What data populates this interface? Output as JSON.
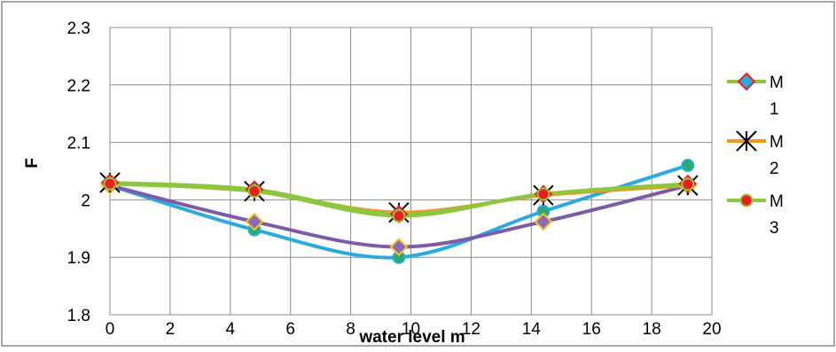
{
  "chart_data": {
    "type": "line",
    "title": "",
    "xlabel": "water level m",
    "ylabel": "F",
    "xlim": [
      0,
      20
    ],
    "ylim": [
      1.8,
      2.3
    ],
    "x_ticks": [
      0,
      2,
      4,
      6,
      8,
      10,
      12,
      14,
      16,
      18,
      20
    ],
    "y_ticks": [
      1.8,
      1.9,
      2.0,
      2.1,
      2.2,
      2.3
    ],
    "x_tick_labels": [
      "0",
      "2",
      "4",
      "6",
      "8",
      "10",
      "12",
      "14",
      "16",
      "18",
      "20"
    ],
    "y_tick_labels": [
      "1.8",
      "1.9",
      "2",
      "2.1",
      "2.2",
      "2.3"
    ],
    "grid": true,
    "legend_position": "right",
    "series": [
      {
        "name": "M 1",
        "legend_lines": [
          "M",
          "1"
        ],
        "color": "#8DC63F",
        "marker": "diamond",
        "marker_fill": "#29ABE2",
        "marker_stroke": "#ED1C24",
        "legend_visible": true,
        "x": [
          0,
          4.8,
          9.6,
          14.4,
          19.2
        ],
        "y": [
          2.03,
          2.018,
          1.975,
          2.01,
          2.028
        ]
      },
      {
        "name": "M 2",
        "legend_lines": [
          "M",
          "2"
        ],
        "color": "#F7941D",
        "marker": "x-star",
        "marker_fill": "none",
        "marker_stroke": "#000000",
        "legend_visible": true,
        "x": [
          0,
          4.8,
          9.6,
          14.4,
          19.2
        ],
        "y": [
          2.03,
          2.015,
          1.978,
          2.008,
          2.025
        ]
      },
      {
        "name": "M 3",
        "legend_lines": [
          "M",
          "3"
        ],
        "color": "#8DC63F",
        "marker": "circle",
        "marker_fill": "#ED1C24",
        "marker_stroke": "#8DC63F",
        "legend_visible": true,
        "x": [
          0,
          4.8,
          9.6,
          14.4,
          19.2
        ],
        "y": [
          2.028,
          2.015,
          1.972,
          2.01,
          2.027
        ]
      },
      {
        "name": "",
        "color": "#7D5BA6",
        "marker": "diamond",
        "marker_fill": "#8B6BB8",
        "marker_stroke": "#F7C325",
        "legend_visible": false,
        "x": [
          0,
          4.8,
          9.6,
          14.4,
          19.2
        ],
        "y": [
          2.025,
          1.962,
          1.918,
          1.962,
          2.025
        ]
      },
      {
        "name": "",
        "color": "#29ABE2",
        "marker": "circle",
        "marker_fill": "#2EAA6F",
        "marker_stroke": "#29ABE2",
        "legend_visible": false,
        "x": [
          0,
          4.8,
          9.6,
          14.4,
          19.2
        ],
        "y": [
          2.025,
          1.948,
          1.9,
          1.98,
          2.06
        ]
      }
    ]
  }
}
